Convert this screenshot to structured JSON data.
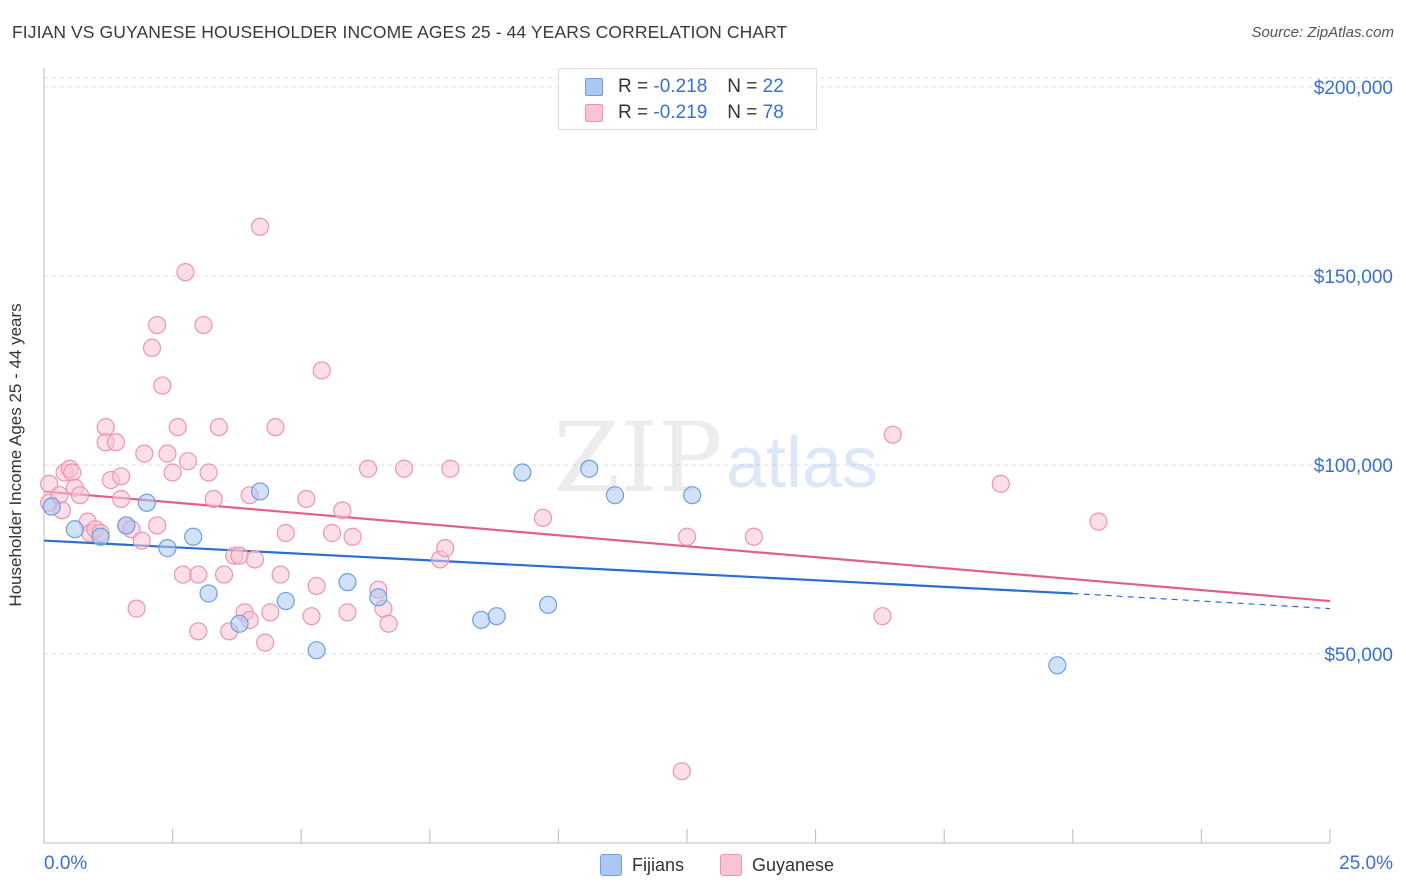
{
  "title": "FIJIAN VS GUYANESE HOUSEHOLDER INCOME AGES 25 - 44 YEARS CORRELATION CHART",
  "source": "Source: ZipAtlas.com",
  "watermark": {
    "zip": "ZIP",
    "atlas": "atlas"
  },
  "legend_top": {
    "rows": [
      {
        "r_label": "R =",
        "r_value": "-0.218",
        "n_label": "N =",
        "n_value": "22"
      },
      {
        "r_label": "R =",
        "r_value": "-0.219",
        "n_label": "N =",
        "n_value": "78"
      }
    ]
  },
  "legend_bottom": {
    "fijians": "Fijians",
    "guyanese": "Guyanese"
  },
  "colors": {
    "fijians_fill": "#aac8f2",
    "fijians_stroke": "#6f9fe0",
    "fijians_line": "#2a6fd0",
    "guyanese_fill": "#f8c3d4",
    "guyanese_stroke": "#ee94b1",
    "guyanese_line": "#e0608c",
    "axis_text": "#3b6fd0",
    "grid": "#dddddd"
  },
  "chart_data": {
    "type": "scatter",
    "title": "FIJIAN VS GUYANESE HOUSEHOLDER INCOME AGES 25 - 44 YEARS CORRELATION CHART",
    "xlabel": "",
    "ylabel": "Householder Income Ages 25 - 44 years",
    "xlim": [
      0,
      25
    ],
    "ylim": [
      0,
      205000
    ],
    "x_tick_labels": [
      "0.0%",
      "25.0%"
    ],
    "y_ticks": [
      50000,
      100000,
      150000,
      200000
    ],
    "y_tick_labels": [
      "$50,000",
      "$100,000",
      "$150,000",
      "$200,000"
    ],
    "grid": true,
    "series": [
      {
        "name": "Fijians",
        "points": [
          [
            0.15,
            89000
          ],
          [
            0.6,
            83000
          ],
          [
            1.1,
            81000
          ],
          [
            1.6,
            84000
          ],
          [
            2.0,
            90000
          ],
          [
            2.4,
            78000
          ],
          [
            2.9,
            81000
          ],
          [
            3.2,
            66000
          ],
          [
            3.8,
            58000
          ],
          [
            4.2,
            93000
          ],
          [
            4.7,
            64000
          ],
          [
            5.3,
            51000
          ],
          [
            5.9,
            69000
          ],
          [
            6.5,
            65000
          ],
          [
            8.5,
            59000
          ],
          [
            8.8,
            60000
          ],
          [
            9.3,
            98000
          ],
          [
            9.8,
            63000
          ],
          [
            10.6,
            99000
          ],
          [
            11.1,
            92000
          ],
          [
            12.6,
            92000
          ],
          [
            19.7,
            47000
          ]
        ],
        "trend": {
          "x": [
            0,
            20.0
          ],
          "y": [
            80000,
            66000
          ]
        },
        "trend_dashed": {
          "x": [
            20.0,
            25.0
          ],
          "y": [
            66000,
            62000
          ]
        }
      },
      {
        "name": "Guyanese",
        "points": [
          [
            0.1,
            90000
          ],
          [
            0.1,
            95000
          ],
          [
            0.3,
            92000
          ],
          [
            0.35,
            88000
          ],
          [
            0.4,
            98000
          ],
          [
            0.5,
            99000
          ],
          [
            0.55,
            98000
          ],
          [
            0.6,
            94000
          ],
          [
            0.7,
            92000
          ],
          [
            0.85,
            85000
          ],
          [
            0.9,
            82000
          ],
          [
            1.0,
            83000
          ],
          [
            1.1,
            82000
          ],
          [
            1.2,
            110000
          ],
          [
            1.2,
            106000
          ],
          [
            1.3,
            96000
          ],
          [
            1.4,
            106000
          ],
          [
            1.5,
            97000
          ],
          [
            1.5,
            91000
          ],
          [
            1.6,
            84000
          ],
          [
            1.7,
            83000
          ],
          [
            1.8,
            62000
          ],
          [
            1.9,
            80000
          ],
          [
            1.95,
            103000
          ],
          [
            2.1,
            131000
          ],
          [
            2.2,
            84000
          ],
          [
            2.2,
            137000
          ],
          [
            2.3,
            121000
          ],
          [
            2.4,
            103000
          ],
          [
            2.5,
            98000
          ],
          [
            2.6,
            110000
          ],
          [
            2.7,
            71000
          ],
          [
            2.75,
            151000
          ],
          [
            2.8,
            101000
          ],
          [
            3.0,
            71000
          ],
          [
            3.0,
            56000
          ],
          [
            3.1,
            137000
          ],
          [
            3.2,
            98000
          ],
          [
            3.3,
            91000
          ],
          [
            3.4,
            110000
          ],
          [
            3.5,
            71000
          ],
          [
            3.6,
            56000
          ],
          [
            3.7,
            76000
          ],
          [
            3.8,
            76000
          ],
          [
            3.9,
            61000
          ],
          [
            4.0,
            59000
          ],
          [
            4.0,
            92000
          ],
          [
            4.1,
            75000
          ],
          [
            4.2,
            163000
          ],
          [
            4.3,
            53000
          ],
          [
            4.4,
            61000
          ],
          [
            4.5,
            110000
          ],
          [
            4.6,
            71000
          ],
          [
            4.7,
            82000
          ],
          [
            5.1,
            91000
          ],
          [
            5.2,
            60000
          ],
          [
            5.3,
            68000
          ],
          [
            5.4,
            125000
          ],
          [
            5.6,
            82000
          ],
          [
            5.8,
            88000
          ],
          [
            5.9,
            61000
          ],
          [
            6.0,
            81000
          ],
          [
            6.3,
            99000
          ],
          [
            6.5,
            67000
          ],
          [
            6.6,
            62000
          ],
          [
            6.7,
            58000
          ],
          [
            7.0,
            99000
          ],
          [
            7.7,
            75000
          ],
          [
            7.8,
            78000
          ],
          [
            7.9,
            99000
          ],
          [
            9.7,
            86000
          ],
          [
            12.5,
            81000
          ],
          [
            12.4,
            19000
          ],
          [
            13.8,
            81000
          ],
          [
            16.3,
            60000
          ],
          [
            16.5,
            108000
          ],
          [
            18.6,
            95000
          ],
          [
            20.5,
            85000
          ]
        ],
        "trend": {
          "x": [
            0,
            25.0
          ],
          "y": [
            93000,
            64000
          ]
        }
      }
    ]
  }
}
